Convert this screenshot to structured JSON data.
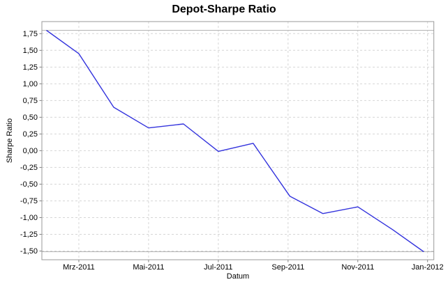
{
  "chart_data": {
    "type": "line",
    "title": "Depot-Sharpe Ratio",
    "xlabel": "Datum",
    "ylabel": "Sharpe Ratio",
    "grid": "dashed",
    "legend": "none",
    "decimal_format": "comma",
    "xlim": [
      0.94,
      12.18
    ],
    "ylim": [
      -1.63,
      1.93
    ],
    "points": [
      {
        "date": "Feb-2011",
        "value": 1.8,
        "pos": 1.07
      },
      {
        "date": "Mrz-2011",
        "value": 1.45,
        "pos": 2
      },
      {
        "date": "Apr-2011",
        "value": 0.65,
        "pos": 3
      },
      {
        "date": "Mai-2011",
        "value": 0.34,
        "pos": 4
      },
      {
        "date": "Jun-2011",
        "value": 0.4,
        "pos": 5
      },
      {
        "date": "Jul-2011",
        "value": -0.01,
        "pos": 6
      },
      {
        "date": "Aug-2011",
        "value": 0.11,
        "pos": 7
      },
      {
        "date": "Sep-2011",
        "value": -0.68,
        "pos": 8.05
      },
      {
        "date": "Okt-2011",
        "value": -0.94,
        "pos": 9
      },
      {
        "date": "Nov-2011",
        "value": -0.84,
        "pos": 10
      },
      {
        "date": "Dez-2011",
        "value": -1.18,
        "pos": 11
      },
      {
        "date": "Jan-2012",
        "value": -1.51,
        "pos": 11.89
      }
    ],
    "x_ticks": [
      {
        "label": "Mrz-2011",
        "pos": 2
      },
      {
        "label": "Mai-2011",
        "pos": 4
      },
      {
        "label": "Jul-2011",
        "pos": 6
      },
      {
        "label": "Sep-2011",
        "pos": 8
      },
      {
        "label": "Nov-2011",
        "pos": 10
      },
      {
        "label": "Jan-2012",
        "pos": 12
      }
    ],
    "y_ticks": [
      {
        "label": "1,75",
        "value": 1.75
      },
      {
        "label": "1,50",
        "value": 1.5
      },
      {
        "label": "1,25",
        "value": 1.25
      },
      {
        "label": "1,00",
        "value": 1.0
      },
      {
        "label": "0,75",
        "value": 0.75
      },
      {
        "label": "0,50",
        "value": 0.5
      },
      {
        "label": "0,25",
        "value": 0.25
      },
      {
        "label": "0,00",
        "value": 0.0
      },
      {
        "label": "-0,25",
        "value": -0.25
      },
      {
        "label": "-0,50",
        "value": -0.5
      },
      {
        "label": "-0,75",
        "value": -0.75
      },
      {
        "label": "-1,00",
        "value": -1.0
      },
      {
        "label": "-1,25",
        "value": -1.25
      },
      {
        "label": "-1,50",
        "value": -1.5
      }
    ],
    "marker_lines": [
      1.8,
      -1.51
    ],
    "colors": {
      "line": "#3333dd",
      "grid": "#d6d6d6",
      "border": "#999999",
      "marker": "#b3b3b3",
      "tick": "#808080",
      "text": "#000000"
    }
  }
}
